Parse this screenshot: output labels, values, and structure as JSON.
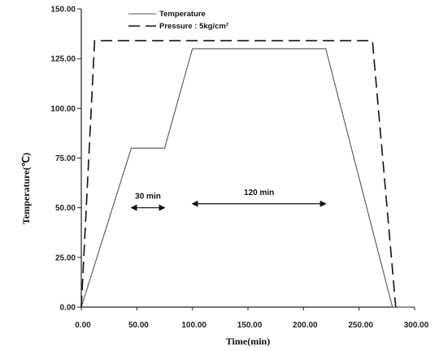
{
  "chart_data": {
    "type": "line",
    "xlabel": "Time(min)",
    "ylabel": "Temperature(℃)",
    "xlim": [
      0,
      300
    ],
    "ylim": [
      0,
      150
    ],
    "xticks": [
      0,
      50,
      100,
      150,
      200,
      250,
      300
    ],
    "yticks": [
      0,
      25,
      50,
      75,
      100,
      125,
      150
    ],
    "xtick_labels": [
      "0.00",
      "50.00",
      "100.00",
      "150.00",
      "200.00",
      "250.00",
      "300.00"
    ],
    "ytick_labels": [
      "0.00",
      "25.00",
      "50.00",
      "75.00",
      "100.00",
      "125.00",
      "150.00"
    ],
    "legend_position": "top-left",
    "grid": false,
    "series": [
      {
        "name": "Temperature",
        "style": "solid",
        "color": "#555555",
        "x": [
          0,
          45,
          75,
          100,
          220,
          280,
          300
        ],
        "y": [
          0,
          80,
          80,
          130,
          130,
          0,
          0
        ]
      },
      {
        "name": "Pressure : 5kg/cm²",
        "style": "dashed",
        "color": "#111111",
        "x": [
          0,
          12,
          262,
          283
        ],
        "y": [
          0,
          134,
          134,
          0
        ]
      }
    ],
    "annotations": [
      {
        "text": "30 min",
        "x_start": 45,
        "x_end": 75,
        "y": 50
      },
      {
        "text": "120 min",
        "x_start": 100,
        "x_end": 220,
        "y": 52
      }
    ]
  }
}
